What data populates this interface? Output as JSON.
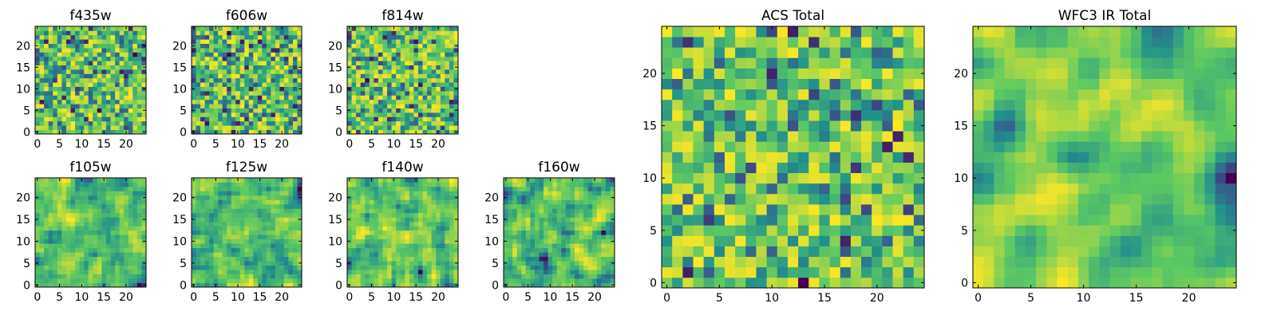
{
  "chart_data": [
    {
      "id": "f435w",
      "type": "heatmap",
      "title": "f435w",
      "size": 25,
      "cmap": "viridis",
      "seed": 11,
      "smooth": 0,
      "bias": 0.62,
      "x_ticks": [
        0,
        5,
        10,
        15,
        20
      ],
      "y_ticks": [
        0,
        5,
        10,
        15,
        20
      ],
      "xlim": [
        0,
        24
      ],
      "ylim": [
        0,
        24
      ]
    },
    {
      "id": "f606w",
      "type": "heatmap",
      "title": "f606w",
      "size": 25,
      "cmap": "viridis",
      "seed": 23,
      "smooth": 0,
      "bias": 0.55,
      "x_ticks": [
        0,
        5,
        10,
        15,
        20
      ],
      "y_ticks": [
        0,
        5,
        10,
        15,
        20
      ],
      "xlim": [
        0,
        24
      ],
      "ylim": [
        0,
        24
      ]
    },
    {
      "id": "f814w",
      "type": "heatmap",
      "title": "f814w",
      "size": 25,
      "cmap": "viridis",
      "seed": 37,
      "smooth": 0,
      "bias": 0.6,
      "x_ticks": [
        0,
        5,
        10,
        15,
        20
      ],
      "y_ticks": [
        0,
        5,
        10,
        15,
        20
      ],
      "xlim": [
        0,
        24
      ],
      "ylim": [
        0,
        24
      ]
    },
    {
      "id": "f105w",
      "type": "heatmap",
      "title": "f105w",
      "size": 25,
      "cmap": "viridis",
      "seed": 41,
      "smooth": 1,
      "bias": 0.55,
      "x_ticks": [
        0,
        5,
        10,
        15,
        20
      ],
      "y_ticks": [
        0,
        5,
        10,
        15,
        20
      ],
      "xlim": [
        0,
        24
      ],
      "ylim": [
        0,
        24
      ]
    },
    {
      "id": "f125w",
      "type": "heatmap",
      "title": "f125w",
      "size": 25,
      "cmap": "viridis",
      "seed": 53,
      "smooth": 1,
      "bias": 0.52,
      "x_ticks": [
        0,
        5,
        10,
        15,
        20
      ],
      "y_ticks": [
        0,
        5,
        10,
        15,
        20
      ],
      "xlim": [
        0,
        24
      ],
      "ylim": [
        0,
        24
      ]
    },
    {
      "id": "f140w",
      "type": "heatmap",
      "title": "f140w",
      "size": 25,
      "cmap": "viridis",
      "seed": 67,
      "smooth": 1,
      "bias": 0.55,
      "x_ticks": [
        0,
        5,
        10,
        15,
        20
      ],
      "y_ticks": [
        0,
        5,
        10,
        15,
        20
      ],
      "xlim": [
        0,
        24
      ],
      "ylim": [
        0,
        24
      ]
    },
    {
      "id": "f160w",
      "type": "heatmap",
      "title": "f160w",
      "size": 25,
      "cmap": "viridis",
      "seed": 79,
      "smooth": 1,
      "bias": 0.55,
      "x_ticks": [
        0,
        5,
        10,
        15,
        20
      ],
      "y_ticks": [
        0,
        5,
        10,
        15,
        20
      ],
      "xlim": [
        0,
        24
      ],
      "ylim": [
        0,
        24
      ]
    },
    {
      "id": "acs-total",
      "type": "heatmap",
      "title": "ACS Total",
      "size": 25,
      "cmap": "viridis",
      "seed": 97,
      "smooth": 0,
      "bias": 0.66,
      "x_ticks": [
        0,
        5,
        10,
        15,
        20
      ],
      "y_ticks": [
        0,
        5,
        10,
        15,
        20
      ],
      "xlim": [
        0,
        24
      ],
      "ylim": [
        0,
        24
      ]
    },
    {
      "id": "wfc3-ir-total",
      "type": "heatmap",
      "title": "WFC3 IR Total",
      "size": 25,
      "cmap": "viridis",
      "seed": 113,
      "smooth": 2,
      "bias": 0.55,
      "x_ticks": [
        0,
        5,
        10,
        15,
        20
      ],
      "y_ticks": [
        0,
        5,
        10,
        15,
        20
      ],
      "xlim": [
        0,
        24
      ],
      "ylim": [
        0,
        24
      ]
    }
  ]
}
